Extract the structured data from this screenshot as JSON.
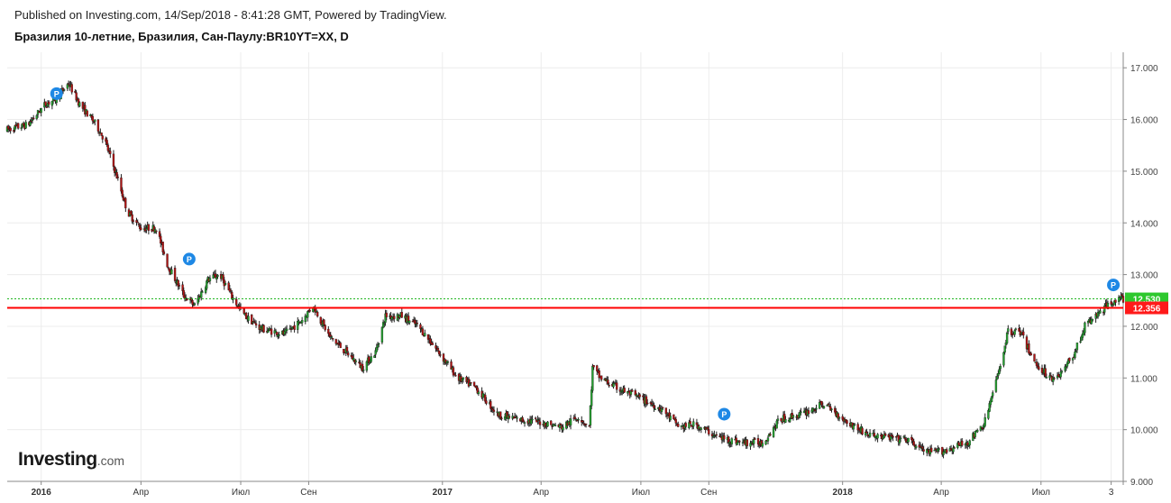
{
  "header": {
    "published": "Published on Investing.com, 14/Sep/2018 - 8:41:28 GMT, Powered by TradingView.",
    "instrument": "Бразилия 10-летние, Бразилия, Сан-Паулу:BR10YT=XX, D"
  },
  "logo": {
    "brand": "Investing",
    "suffix": ".com"
  },
  "colors": {
    "up": "#26a131",
    "down": "#b01414",
    "wick": "#222222",
    "grid": "#ececec",
    "resistance_line": "#ff0000",
    "last_price_line": "#22b522",
    "last_price_badge": "#2ec82e",
    "level_badge": "#ff1a1a",
    "marker": "#1e88e5"
  },
  "chart_data": {
    "type": "candlestick",
    "ylim": [
      9.0,
      17.3
    ],
    "y_ticks": [
      "9.000",
      "10.000",
      "11.000",
      "12.000",
      "13.000",
      "14.000",
      "15.000",
      "16.000",
      "17.000"
    ],
    "x_ticks": [
      "2016",
      "Апр",
      "Июл",
      "Сен",
      "2017",
      "Апр",
      "Июл",
      "Сен",
      "2018",
      "Апр",
      "Июл",
      "3"
    ],
    "x_tick_dates": [
      "2016-01-01",
      "2016-04-01",
      "2016-07-01",
      "2016-09-01",
      "2017-01-01",
      "2017-04-01",
      "2017-07-01",
      "2017-09-01",
      "2018-01-01",
      "2018-04-01",
      "2018-07-01",
      "2018-09-03"
    ],
    "x_range": [
      "2015-12-01",
      "2018-09-14"
    ],
    "trend": [
      [
        "2015-12-01",
        15.8
      ],
      [
        "2015-12-20",
        15.9
      ],
      [
        "2016-01-05",
        16.3
      ],
      [
        "2016-01-15",
        16.4
      ],
      [
        "2016-01-26",
        16.7
      ],
      [
        "2016-02-05",
        16.3
      ],
      [
        "2016-02-20",
        15.9
      ],
      [
        "2016-02-28",
        15.6
      ],
      [
        "2016-03-10",
        14.9
      ],
      [
        "2016-03-20",
        14.2
      ],
      [
        "2016-04-01",
        13.9
      ],
      [
        "2016-04-15",
        13.9
      ],
      [
        "2016-04-25",
        13.2
      ],
      [
        "2016-05-10",
        12.6
      ],
      [
        "2016-05-20",
        12.4
      ],
      [
        "2016-06-01",
        12.9
      ],
      [
        "2016-06-12",
        13.0
      ],
      [
        "2016-06-25",
        12.5
      ],
      [
        "2016-07-05",
        12.2
      ],
      [
        "2016-07-20",
        11.95
      ],
      [
        "2016-08-10",
        11.85
      ],
      [
        "2016-08-25",
        12.1
      ],
      [
        "2016-09-05",
        12.4
      ],
      [
        "2016-09-20",
        11.8
      ],
      [
        "2016-10-05",
        11.5
      ],
      [
        "2016-10-20",
        11.2
      ],
      [
        "2016-11-01",
        11.5
      ],
      [
        "2016-11-10",
        12.2
      ],
      [
        "2016-11-25",
        12.2
      ],
      [
        "2016-12-10",
        12.0
      ],
      [
        "2016-12-25",
        11.6
      ],
      [
        "2017-01-15",
        11.0
      ],
      [
        "2017-02-01",
        10.8
      ],
      [
        "2017-02-20",
        10.3
      ],
      [
        "2017-03-10",
        10.2
      ],
      [
        "2017-03-30",
        10.15
      ],
      [
        "2017-04-20",
        10.05
      ],
      [
        "2017-05-05",
        10.25
      ],
      [
        "2017-05-15",
        10.05
      ],
      [
        "2017-05-18",
        11.2
      ],
      [
        "2017-05-25",
        11.0
      ],
      [
        "2017-06-10",
        10.8
      ],
      [
        "2017-07-01",
        10.6
      ],
      [
        "2017-07-20",
        10.4
      ],
      [
        "2017-08-05",
        10.05
      ],
      [
        "2017-08-20",
        10.1
      ],
      [
        "2017-09-10",
        9.85
      ],
      [
        "2017-10-01",
        9.75
      ],
      [
        "2017-10-20",
        9.75
      ],
      [
        "2017-11-05",
        10.2
      ],
      [
        "2017-11-25",
        10.3
      ],
      [
        "2017-12-15",
        10.5
      ],
      [
        "2018-01-05",
        10.15
      ],
      [
        "2018-01-25",
        9.9
      ],
      [
        "2018-02-10",
        9.85
      ],
      [
        "2018-03-01",
        9.8
      ],
      [
        "2018-03-20",
        9.55
      ],
      [
        "2018-04-05",
        9.6
      ],
      [
        "2018-04-25",
        9.75
      ],
      [
        "2018-05-10",
        10.1
      ],
      [
        "2018-05-22",
        11.0
      ],
      [
        "2018-06-01",
        11.9
      ],
      [
        "2018-06-12",
        11.9
      ],
      [
        "2018-06-25",
        11.3
      ],
      [
        "2018-07-10",
        11.0
      ],
      [
        "2018-07-20",
        11.1
      ],
      [
        "2018-08-01",
        11.5
      ],
      [
        "2018-08-10",
        12.0
      ],
      [
        "2018-08-25",
        12.3
      ],
      [
        "2018-09-05",
        12.5
      ],
      [
        "2018-09-14",
        12.53
      ]
    ],
    "markers": [
      {
        "date": "2016-01-15",
        "price": 16.5,
        "label": "P"
      },
      {
        "date": "2016-05-15",
        "price": 13.3,
        "label": "P"
      },
      {
        "date": "2017-09-15",
        "price": 10.3,
        "label": "P"
      },
      {
        "date": "2018-09-05",
        "price": 12.8,
        "label": "P"
      }
    ],
    "levels": [
      {
        "name": "last_price",
        "value": 12.53,
        "label": "12.530",
        "style": "dotted"
      },
      {
        "name": "resistance",
        "value": 12.356,
        "label": "12.356",
        "style": "solid"
      }
    ],
    "grid": true
  }
}
